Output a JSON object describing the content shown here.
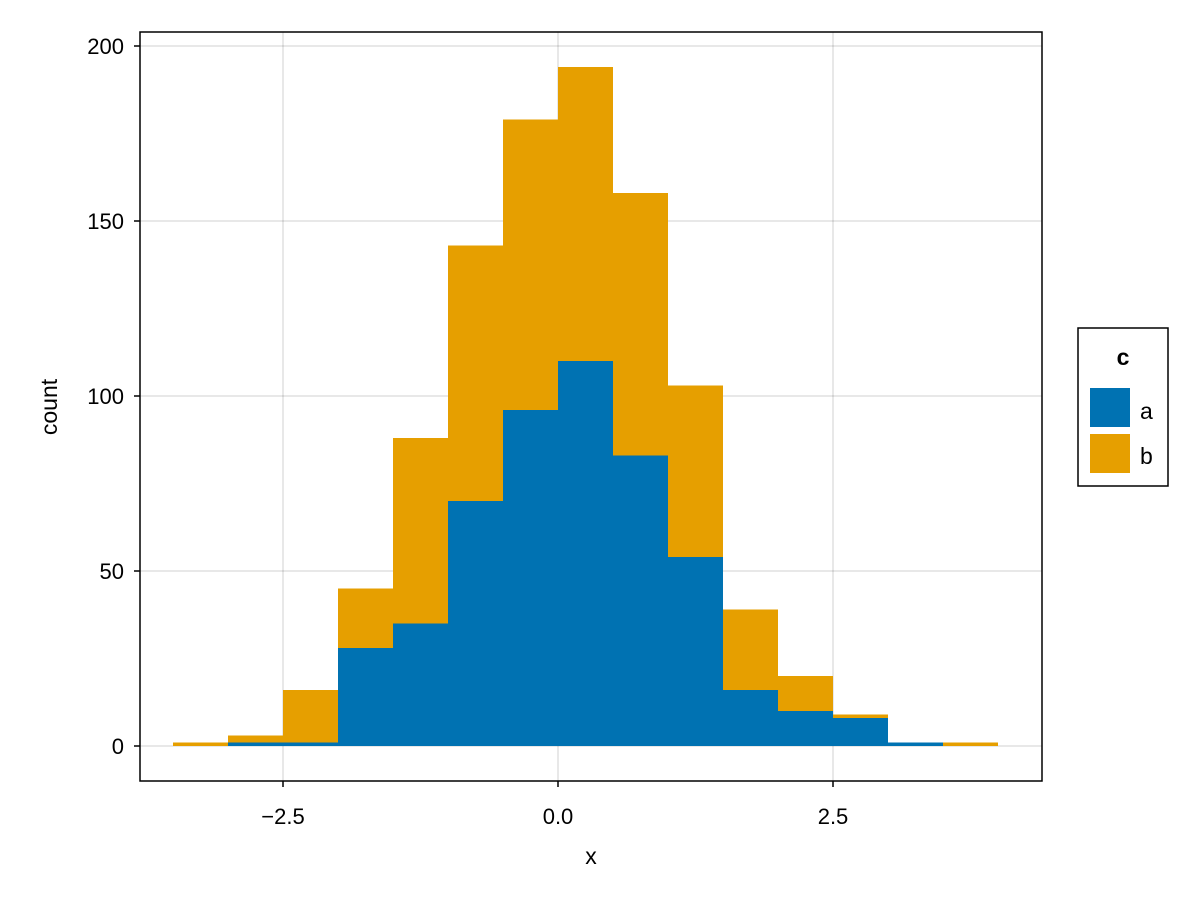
{
  "chart_data": {
    "type": "bar",
    "stacked": true,
    "xlabel": "x",
    "ylabel": "count",
    "xlim": [
      -3.8,
      4.4
    ],
    "ylim": [
      -10,
      204
    ],
    "xticks": [
      -2.5,
      0.0,
      2.5
    ],
    "xtick_labels": [
      "−2.5",
      "0.0",
      "2.5"
    ],
    "yticks": [
      0,
      50,
      100,
      150,
      200
    ],
    "ytick_labels": [
      "0",
      "50",
      "100",
      "150",
      "200"
    ],
    "grid": true,
    "bin_edges": [
      -3.5,
      -3.0,
      -2.5,
      -2.0,
      -1.5,
      -1.0,
      -0.5,
      0.0,
      0.5,
      1.0,
      1.5,
      2.0,
      2.5,
      3.0,
      3.5,
      4.0
    ],
    "series": [
      {
        "name": "a",
        "color": "#0072b2",
        "values": [
          0,
          1,
          1,
          28,
          35,
          70,
          96,
          110,
          83,
          54,
          16,
          10,
          8,
          1,
          0
        ]
      },
      {
        "name": "b",
        "color": "#e69f00",
        "values": [
          1,
          2,
          15,
          17,
          53,
          73,
          83,
          84,
          75,
          49,
          23,
          10,
          1,
          0,
          1
        ]
      }
    ],
    "legend": {
      "title": "c",
      "position": "right"
    }
  }
}
